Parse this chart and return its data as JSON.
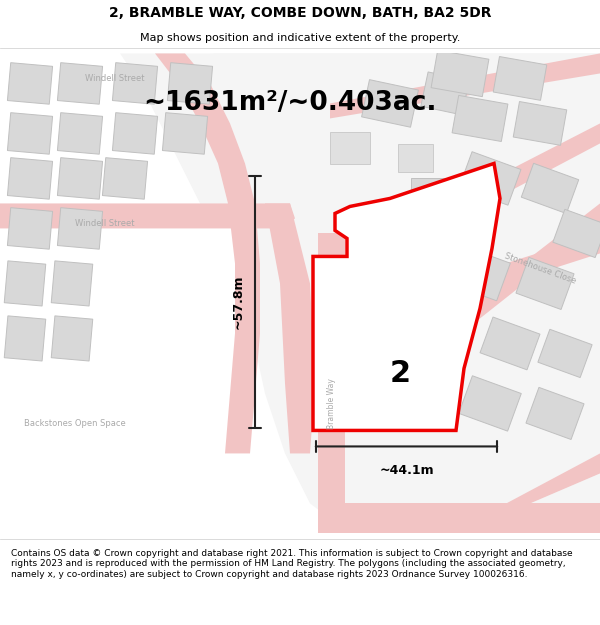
{
  "title": "2, BRAMBLE WAY, COMBE DOWN, BATH, BA2 5DR",
  "subtitle": "Map shows position and indicative extent of the property.",
  "footer": "Contains OS data © Crown copyright and database right 2021. This information is subject to Crown copyright and database rights 2023 and is reproduced with the permission of HM Land Registry. The polygons (including the associated geometry, namely x, y co-ordinates) are subject to Crown copyright and database rights 2023 Ordnance Survey 100026316.",
  "area_label": "~1631m²/~0.403ac.",
  "width_label": "~44.1m",
  "height_label": "~57.8m",
  "property_number": "2",
  "map_bg_green": "#eaede8",
  "map_bg_white": "#f5f5f5",
  "property_fill": "#ffffff",
  "property_outline": "#ee0000",
  "road_color": "#f2c4c4",
  "road_edge": "#e8a8a8",
  "building_fill": "#d8d8d8",
  "building_edge": "#c0c0c0",
  "dim_color": "#222222",
  "label_color": "#aaaaaa",
  "title_fontsize": 10,
  "subtitle_fontsize": 8,
  "footer_fontsize": 6.5
}
